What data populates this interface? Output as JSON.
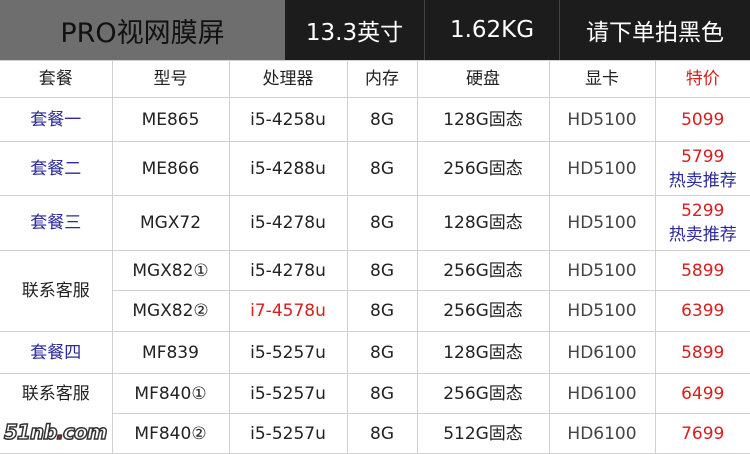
{
  "header": {
    "title": "PRO视网膜屏",
    "size": "13.3英寸",
    "weight": "1.62KG",
    "note": "请下单拍黑色"
  },
  "columns": [
    "套餐",
    "型号",
    "处理器",
    "内存",
    "硬盘",
    "显卡",
    "特价"
  ],
  "rows": [
    {
      "package": "套餐一",
      "model": "ME865",
      "cpu": "i5-4258u",
      "ram": "8G",
      "disk": "128G固态",
      "gpu": "HD5100",
      "price": "5099"
    },
    {
      "package": "套餐二",
      "model": "ME866",
      "cpu": "i5-4288u",
      "ram": "8G",
      "disk": "256G固态",
      "gpu": "HD5100",
      "price": "5799",
      "tag": "热卖推荐"
    },
    {
      "package": "套餐三",
      "model": "MGX72",
      "cpu": "i5-4278u",
      "ram": "8G",
      "disk": "128G固态",
      "gpu": "HD5100",
      "price": "5299",
      "tag": "热卖推荐"
    },
    {
      "package": "联系客服",
      "model": "MGX82①",
      "cpu": "i5-4278u",
      "ram": "8G",
      "disk": "256G固态",
      "gpu": "HD5100",
      "price": "5899"
    },
    {
      "model": "MGX82②",
      "cpu": "i7-4578u",
      "ram": "8G",
      "disk": "256G固态",
      "gpu": "HD5100",
      "price": "6399"
    },
    {
      "package": "套餐四",
      "model": "MF839",
      "cpu": "i5-5257u",
      "ram": "8G",
      "disk": "128G固态",
      "gpu": "HD6100",
      "price": "5899"
    },
    {
      "package": "联系客服",
      "model": "MF840①",
      "cpu": "i5-5257u",
      "ram": "8G",
      "disk": "256G固态",
      "gpu": "HD6100",
      "price": "6499"
    },
    {
      "model": "MF840②",
      "cpu": "i5-5257u",
      "ram": "8G",
      "disk": "512G固态",
      "gpu": "HD6100",
      "price": "7699"
    }
  ],
  "watermark": {
    "text": "51nb",
    "dot": ".",
    "suffix": "com"
  }
}
